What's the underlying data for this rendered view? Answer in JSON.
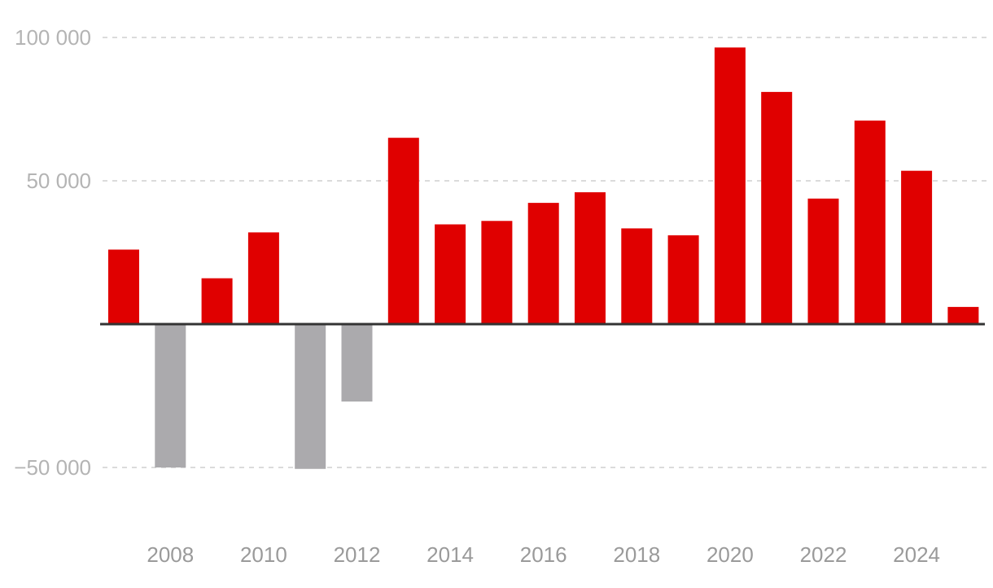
{
  "chart_data": {
    "type": "bar",
    "title": "",
    "xlabel": "",
    "ylabel": "",
    "categories": [
      "2007",
      "2008",
      "2009",
      "2010",
      "2011",
      "2012",
      "2013",
      "2014",
      "2015",
      "2016",
      "2017",
      "2018",
      "2019",
      "2020",
      "2021",
      "2022",
      "2023",
      "2024",
      "2025"
    ],
    "values": [
      26000,
      -50000,
      16000,
      32000,
      -50500,
      -27000,
      65000,
      34800,
      36000,
      42300,
      46000,
      33400,
      31000,
      96500,
      81000,
      43800,
      71000,
      53500,
      6000
    ],
    "x_tick_labels": [
      "2008",
      "2010",
      "2012",
      "2014",
      "2016",
      "2018",
      "2020",
      "2022",
      "2024"
    ],
    "y_ticks": [
      100000,
      50000,
      -50000
    ],
    "y_tick_labels": [
      "100 000",
      "50 000",
      "−50 000"
    ],
    "ylim": [
      -73000,
      113000
    ],
    "grid": true,
    "legend": "none",
    "colors": {
      "positive": "#e00000",
      "negative": "#abaaad",
      "zero_line": "#333333",
      "grid": "#cfcfcf"
    }
  }
}
